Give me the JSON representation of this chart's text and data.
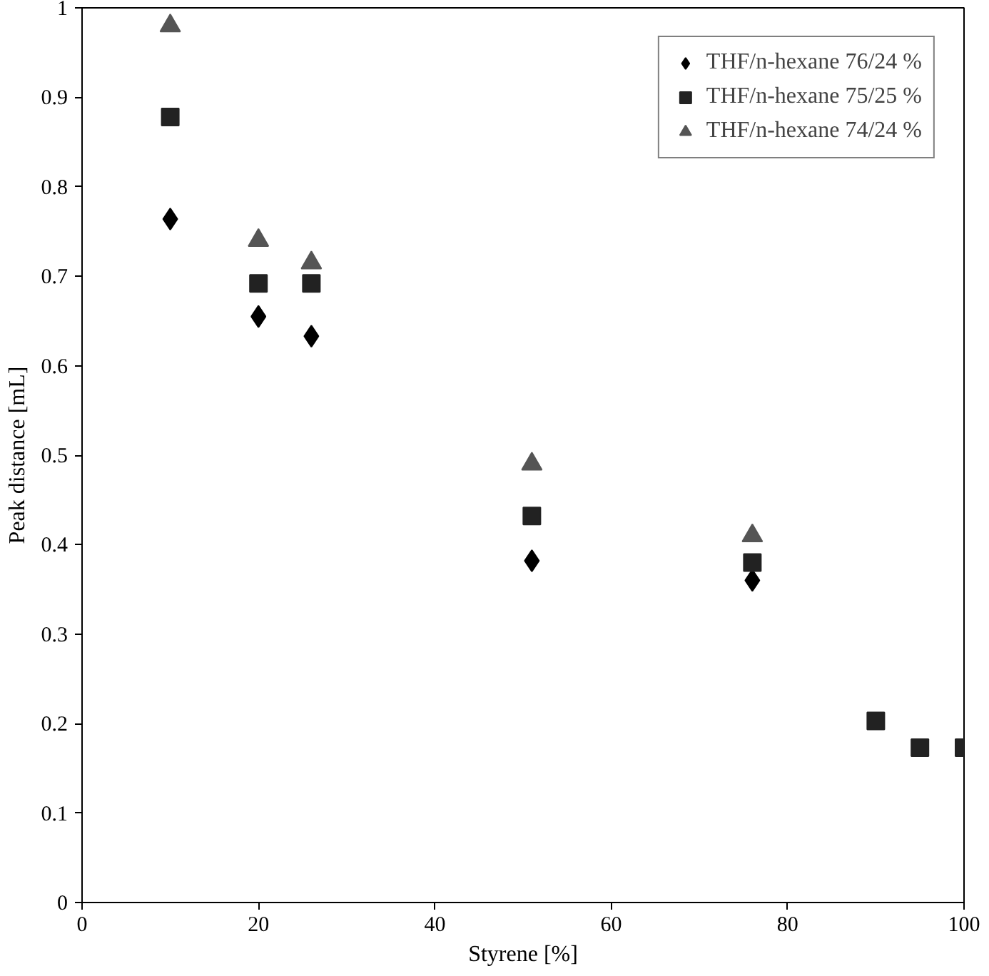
{
  "chart_data": {
    "type": "scatter",
    "xlabel": "Styrene [%]",
    "ylabel": "Peak distance [mL]",
    "xlim": [
      0,
      100
    ],
    "xticks": [
      0,
      20,
      40,
      60,
      80,
      100
    ],
    "ylim": [
      0,
      1
    ],
    "yticks": [
      0,
      0.1,
      0.2,
      0.3,
      0.4,
      0.5,
      0.6,
      0.7,
      0.8,
      0.9,
      1
    ],
    "grid": false,
    "legend": "top right",
    "series": [
      {
        "name": "THF/n-hexane 76/24 %",
        "color": "#000000",
        "marker": "diamond",
        "x": [
          10,
          20,
          26,
          51,
          76
        ],
        "values": [
          0.764,
          0.655,
          0.633,
          0.382,
          0.36
        ]
      },
      {
        "name": "THF/n-hexane 75/25 %",
        "color": "#222222",
        "marker": "square",
        "x": [
          10,
          20,
          26,
          51,
          76,
          90,
          95,
          100
        ],
        "values": [
          0.878,
          0.692,
          0.692,
          0.432,
          0.38,
          0.203,
          0.173,
          0.173
        ]
      },
      {
        "name": "THF/n-hexane 74/24 %",
        "color": "#555555",
        "marker": "triangle",
        "x": [
          10,
          20,
          26,
          51,
          76
        ],
        "values": [
          0.98,
          0.74,
          0.715,
          0.49,
          0.41
        ]
      }
    ]
  }
}
